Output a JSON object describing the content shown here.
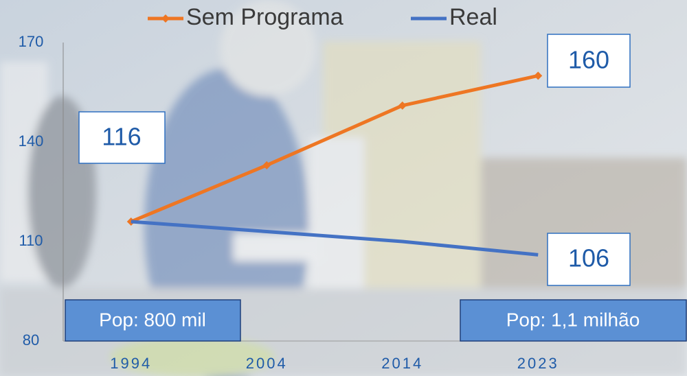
{
  "chart_data": {
    "type": "line",
    "categories": [
      "1994",
      "2004",
      "2014",
      "2023"
    ],
    "series": [
      {
        "name": "Sem Programa",
        "color": "#ee7623",
        "values": [
          116,
          133,
          151,
          160
        ],
        "value_labels": [
          "116",
          null,
          null,
          "160"
        ],
        "marker": "diamond"
      },
      {
        "name": "Real",
        "color": "#4472c4",
        "values": [
          116,
          113,
          110,
          106
        ],
        "value_labels": [
          null,
          null,
          null,
          "106"
        ]
      }
    ],
    "ylim": [
      80,
      170
    ],
    "yticks": [
      80,
      110,
      140,
      170
    ],
    "grid": false,
    "legend": "top",
    "annotations": [
      "Pop: 800 mil",
      "Pop: 1,1 milhão"
    ]
  }
}
